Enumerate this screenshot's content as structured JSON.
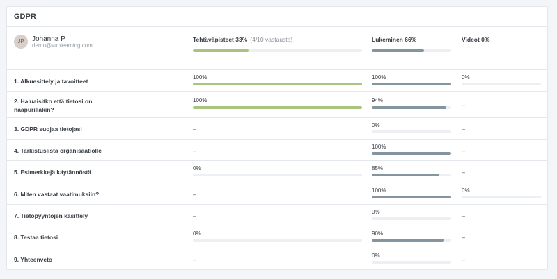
{
  "card": {
    "title": "GDPR"
  },
  "user": {
    "initials": "JP",
    "name": "Johanna P",
    "email": "demo@vuolearning.com"
  },
  "columns": {
    "tasks": {
      "label": "Tehtäväpisteet 33%",
      "detail": "(4/10 vastausta)",
      "progress": 33
    },
    "reading": {
      "label": "Lukeminen 66%",
      "progress": 66
    },
    "videos": {
      "label": "Videot 0%"
    }
  },
  "colors": {
    "tasks_fill": "#a9c47f",
    "reading_fill": "#8595a0",
    "track": "#edeff2"
  },
  "rows": [
    {
      "title": "1. Alkuesittely ja tavoitteet",
      "tasks": "100%",
      "tasks_val": 100,
      "reading": "100%",
      "reading_val": 100,
      "videos": "0%",
      "videos_val": 0
    },
    {
      "title": "2. Haluaisitko että tietosi on naapurillakin?",
      "tasks": "100%",
      "tasks_val": 100,
      "reading": "94%",
      "reading_val": 94,
      "videos": "–"
    },
    {
      "title": "3. GDPR suojaa tietojasi",
      "tasks": "–",
      "reading": "0%",
      "reading_val": 0,
      "videos": "–"
    },
    {
      "title": "4. Tarkistuslista organisaatiolle",
      "tasks": "–",
      "reading": "100%",
      "reading_val": 100,
      "videos": "–"
    },
    {
      "title": "5. Esimerkkejä käytännöstä",
      "tasks": "0%",
      "tasks_val": 0,
      "reading": "85%",
      "reading_val": 85,
      "videos": "–"
    },
    {
      "title": "6. Miten vastaat vaatimuksiin?",
      "tasks": "–",
      "reading": "100%",
      "reading_val": 100,
      "videos": "0%",
      "videos_val": 0
    },
    {
      "title": "7. Tietopyyntöjen käsittely",
      "tasks": "–",
      "reading": "0%",
      "reading_val": 0,
      "videos": "–"
    },
    {
      "title": "8. Testaa tietosi",
      "tasks": "0%",
      "tasks_val": 0,
      "reading": "90%",
      "reading_val": 90,
      "videos": "–"
    },
    {
      "title": "9. Yhteenveto",
      "tasks": "–",
      "reading": "0%",
      "reading_val": 0,
      "videos": "–"
    }
  ]
}
